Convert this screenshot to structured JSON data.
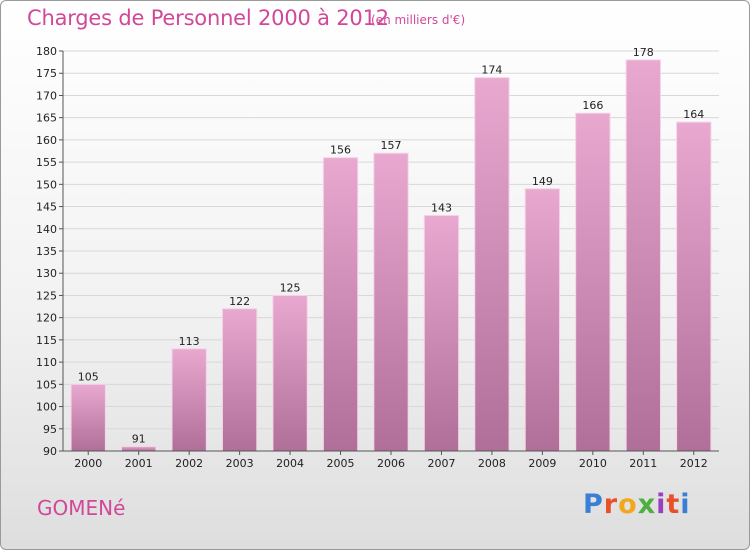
{
  "header": {
    "title": "Charges de Personnel 2000 à 2012",
    "subtitle": "(en milliers d'€)"
  },
  "footer": {
    "commune": "GOMENé",
    "logo": "Proxiti",
    "logo_colors": [
      "#3a7fd5",
      "#e94f2a",
      "#f2a81d",
      "#4caf3f",
      "#9b3fc0",
      "#e94f2a",
      "#3a7fd5"
    ]
  },
  "colors": {
    "bar_light": "#e8a8d0",
    "bar_dark": "#b06f98",
    "title": "#d1489a"
  },
  "chart_data": {
    "type": "bar",
    "title": "Charges de Personnel 2000 à 2012",
    "subtitle": "(en milliers d'€)",
    "categories": [
      "2000",
      "2001",
      "2002",
      "2003",
      "2004",
      "2005",
      "2006",
      "2007",
      "2008",
      "2009",
      "2010",
      "2011",
      "2012"
    ],
    "values": [
      105,
      91,
      113,
      122,
      125,
      156,
      157,
      143,
      174,
      149,
      166,
      178,
      164
    ],
    "ylim": [
      90,
      180
    ],
    "yticks": [
      90,
      95,
      100,
      105,
      110,
      115,
      120,
      125,
      130,
      135,
      140,
      145,
      150,
      155,
      160,
      165,
      170,
      175,
      180
    ],
    "grid": true,
    "legend": "none"
  }
}
